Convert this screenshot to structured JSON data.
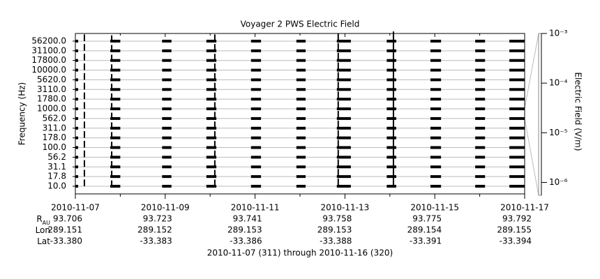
{
  "chart_data": {
    "type": "spectrogram",
    "title": "Voyager 2 PWS Electric Field",
    "ylabel": "Frequency (Hz)",
    "y2label": "Electric Field (V/m)",
    "footer": "2010-11-07 (311) through 2010-11-16 (320)",
    "channels": [
      {
        "value": 10,
        "label": "10.0"
      },
      17.8,
      31.1,
      56.2,
      {
        "value": 100,
        "label": "100.0"
      },
      {
        "value": 178,
        "label": "178.0"
      },
      {
        "value": 311,
        "label": "311.0"
      },
      {
        "value": 562,
        "label": "562.0"
      },
      {
        "value": 1000,
        "label": "1000.0"
      },
      {
        "value": 1780,
        "label": "1780.0"
      },
      {
        "value": 3110,
        "label": "3110.0"
      },
      {
        "value": 5620,
        "label": "5620.0"
      },
      {
        "value": 10000,
        "label": "10000.0"
      },
      {
        "value": 17800,
        "label": "17800.0"
      },
      {
        "value": 31100,
        "label": "31100.0"
      },
      {
        "value": 56200,
        "label": "56200.0"
      }
    ],
    "xlim": [
      "2010-11-07",
      "2010-11-17"
    ],
    "xticks": [
      "2010-11-07",
      "2010-11-09",
      "2010-11-11",
      "2010-11-13",
      "2010-11-15",
      "2010-11-17"
    ],
    "xminorticks": [
      "2010-11-08",
      "2010-11-10",
      "2010-11-12",
      "2010-11-14",
      "2010-11-16"
    ],
    "segments": [
      [
        "2010-11-07T00:00",
        "2010-11-07T01:30"
      ],
      [
        "2010-11-07T18:40",
        "2010-11-08T00:00"
      ],
      [
        "2010-11-08T22:20",
        "2010-11-09T03:20"
      ],
      [
        "2010-11-09T22:00",
        "2010-11-10T03:20"
      ],
      [
        "2010-11-10T21:50",
        "2010-11-11T03:10"
      ],
      [
        "2010-11-11T22:05",
        "2010-11-12T03:00"
      ],
      [
        "2010-11-12T19:40",
        "2010-11-13T03:10"
      ],
      [
        "2010-11-13T22:20",
        "2010-11-14T03:25"
      ],
      [
        "2010-11-14T21:40",
        "2010-11-15T03:20"
      ],
      [
        "2010-11-15T21:35",
        "2010-11-16T02:50"
      ],
      [
        "2010-11-16T15:50",
        "2010-11-17T00:00"
      ]
    ],
    "bursts": [
      {
        "time": "2010-11-07T04:50",
        "peak": 0.0001
      },
      {
        "time": "2010-11-07T19:25",
        "peak": 5e-05
      },
      {
        "time": "2010-11-10T02:30",
        "peak": 0.0001
      },
      {
        "time": "2010-11-12T20:25",
        "peak": 0.0002
      },
      {
        "time": "2010-11-14T01:55",
        "peak": 0.001
      }
    ],
    "y2scale": "log",
    "y2lim": [
      5.5e-07,
      0.001
    ],
    "y2ticks": [
      {
        "value": 0.001,
        "label": "10⁻³"
      },
      {
        "value": 0.0001,
        "label": "10⁻⁴"
      },
      {
        "value": 1e-05,
        "label": "10⁻⁵"
      },
      {
        "value": 1e-06,
        "label": "10⁻⁶"
      }
    ],
    "grid": true,
    "color": "#000000",
    "ephemeris": [
      {
        "label": "R",
        "sub": "AU",
        "values": [
          "93.706",
          "93.723",
          "93.741",
          "93.758",
          "93.775",
          "93.792"
        ]
      },
      {
        "label": "Lon",
        "values": [
          "289.151",
          "289.152",
          "289.153",
          "289.153",
          "289.154",
          "289.155"
        ]
      },
      {
        "label": "Lat",
        "values": [
          "-33.380",
          "-33.383",
          "-33.386",
          "-33.388",
          "-33.391",
          "-33.394"
        ]
      }
    ]
  }
}
